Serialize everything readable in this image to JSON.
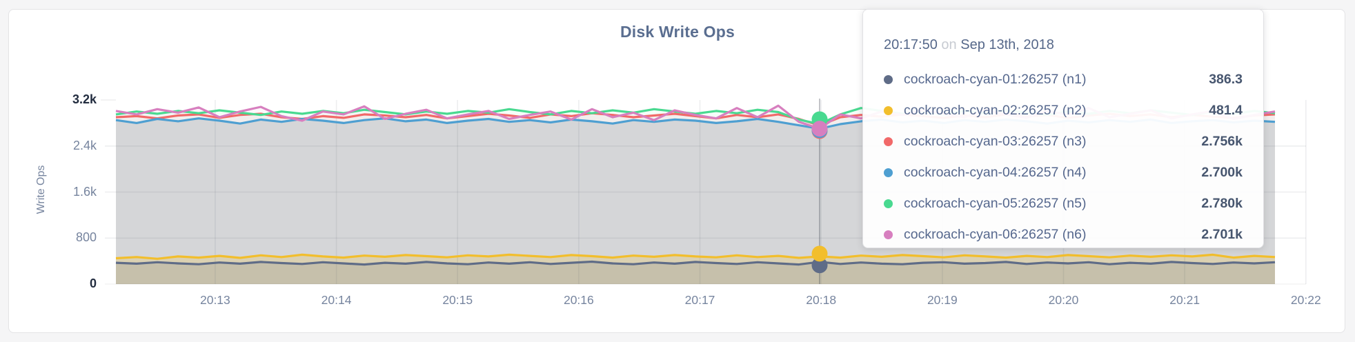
{
  "card": {
    "title": "Disk Write Ops"
  },
  "colors": {
    "slate": "#5F6C87",
    "yellow": "#F2BE2C",
    "red": "#F16969",
    "blue": "#4E9FD1",
    "green": "#49D990",
    "pink": "#D77FBF",
    "grid": "rgba(80,85,95,0.10)",
    "hover_line": "rgba(80,85,95,0.38)",
    "base_fill": "#e7e6e8"
  },
  "tooltip": {
    "time": "20:17:50",
    "on_word": "on",
    "date": "Sep 13th, 2018"
  },
  "chart_data": {
    "type": "line",
    "title": "Disk Write Ops",
    "ylabel": "Write Ops",
    "ylim": [
      0,
      3200
    ],
    "y_ticks": [
      {
        "label": "3.2k",
        "value": 3200,
        "emphasis": true
      },
      {
        "label": "2.4k",
        "value": 2400,
        "emphasis": false
      },
      {
        "label": "1.6k",
        "value": 1600,
        "emphasis": false
      },
      {
        "label": "800",
        "value": 800,
        "emphasis": false
      },
      {
        "label": "0",
        "value": 0,
        "emphasis": true
      }
    ],
    "x_ticks": [
      "20:13",
      "20:14",
      "20:15",
      "20:16",
      "20:17",
      "20:18",
      "20:19",
      "20:20",
      "20:21",
      "20:22"
    ],
    "sample_interval_seconds": 10,
    "grid": true,
    "legend_position": "tooltip",
    "hover": {
      "time": "20:17:50",
      "date": "Sep 13th, 2018",
      "index": 34
    },
    "series": [
      {
        "name": "cockroach-cyan-01:26257 (n1)",
        "color": "#5F6C87",
        "hover_value_label": "386.3",
        "fill_opacity": 0.16,
        "values": [
          370,
          355,
          380,
          360,
          345,
          375,
          355,
          385,
          365,
          350,
          380,
          360,
          340,
          370,
          355,
          385,
          360,
          345,
          375,
          355,
          380,
          350,
          370,
          390,
          360,
          345,
          375,
          355,
          385,
          365,
          350,
          380,
          360,
          340,
          386,
          350,
          375,
          355,
          345,
          370,
          380,
          355,
          365,
          385,
          350,
          375,
          360,
          380,
          345,
          370,
          355,
          385,
          365,
          350,
          375,
          360,
          380
        ]
      },
      {
        "name": "cockroach-cyan-02:26257 (n2)",
        "color": "#F2BE2C",
        "hover_value_label": "481.4",
        "fill_opacity": 0.22,
        "values": [
          450,
          470,
          440,
          480,
          460,
          490,
          455,
          500,
          470,
          510,
          480,
          460,
          495,
          475,
          505,
          485,
          465,
          500,
          480,
          510,
          490,
          470,
          505,
          485,
          460,
          495,
          475,
          505,
          480,
          465,
          500,
          470,
          490,
          455,
          481,
          460,
          495,
          475,
          505,
          485,
          465,
          500,
          480,
          460,
          490,
          470,
          505,
          485,
          465,
          495,
          475,
          500,
          480,
          510,
          460,
          490,
          470
        ]
      },
      {
        "name": "cockroach-cyan-03:26257 (n3)",
        "color": "#F16969",
        "hover_value_label": "2.756k",
        "fill_opacity": 0.055,
        "values": [
          2900,
          2920,
          2880,
          2930,
          2950,
          2890,
          2940,
          2960,
          2900,
          2870,
          2920,
          2890,
          2950,
          2930,
          2900,
          2940,
          2880,
          2920,
          2960,
          2930,
          2890,
          2950,
          2920,
          2970,
          2940,
          2900,
          2930,
          2960,
          2920,
          2880,
          2940,
          2900,
          2950,
          2870,
          2756,
          2900,
          2940,
          2910,
          2950,
          2920,
          2890,
          2930,
          2900,
          2950,
          2910,
          2940,
          2890,
          2930,
          2960,
          2920,
          2950,
          2900,
          2940,
          2910,
          2890,
          2930,
          2950
        ]
      },
      {
        "name": "cockroach-cyan-04:26257 (n4)",
        "color": "#4E9FD1",
        "hover_value_label": "2.700k",
        "fill_opacity": 0.055,
        "values": [
          2850,
          2800,
          2870,
          2830,
          2880,
          2840,
          2790,
          2860,
          2820,
          2870,
          2840,
          2800,
          2850,
          2880,
          2830,
          2860,
          2800,
          2840,
          2870,
          2820,
          2850,
          2810,
          2860,
          2830,
          2790,
          2850,
          2820,
          2860,
          2840,
          2800,
          2830,
          2870,
          2820,
          2760,
          2700,
          2780,
          2830,
          2860,
          2810,
          2840,
          2800,
          2850,
          2820,
          2860,
          2830,
          2790,
          2840,
          2810,
          2850,
          2820,
          2860,
          2800,
          2830,
          2850,
          2810,
          2840,
          2820
        ]
      },
      {
        "name": "cockroach-cyan-05:26257 (n5)",
        "color": "#49D990",
        "hover_value_label": "2.780k",
        "fill_opacity": 0.055,
        "values": [
          2950,
          3000,
          2960,
          3010,
          2970,
          3020,
          2980,
          2940,
          3000,
          2960,
          3010,
          2970,
          3030,
          2990,
          2950,
          3000,
          2960,
          3010,
          2980,
          3040,
          2990,
          2950,
          3010,
          2970,
          3020,
          2980,
          3040,
          3000,
          2960,
          3010,
          2970,
          3030,
          2990,
          2860,
          2780,
          2950,
          3060,
          3010,
          2960,
          3000,
          2950,
          3010,
          2970,
          3020,
          2980,
          2940,
          3000,
          2960,
          3010,
          2970,
          3020,
          2980,
          2940,
          3000,
          2960,
          3010,
          2970
        ]
      },
      {
        "name": "cockroach-cyan-06:26257 (n6)",
        "color": "#D77FBF",
        "hover_value_label": "2.701k",
        "fill_opacity": 0.055,
        "values": [
          3010,
          2950,
          3040,
          2980,
          3070,
          2900,
          3000,
          3080,
          2920,
          2840,
          3000,
          2950,
          3090,
          2870,
          2960,
          3030,
          2880,
          2950,
          3010,
          2870,
          2940,
          3000,
          2860,
          3040,
          2900,
          2980,
          2850,
          3020,
          2940,
          2880,
          3060,
          2900,
          3100,
          2820,
          2701,
          2950,
          2880,
          3000,
          2940,
          3020,
          2960,
          2900,
          3030,
          2950,
          2890,
          3010,
          2940,
          3060,
          2900,
          2960,
          3020,
          2880,
          2950,
          3010,
          2870,
          2940,
          3000
        ]
      }
    ]
  }
}
